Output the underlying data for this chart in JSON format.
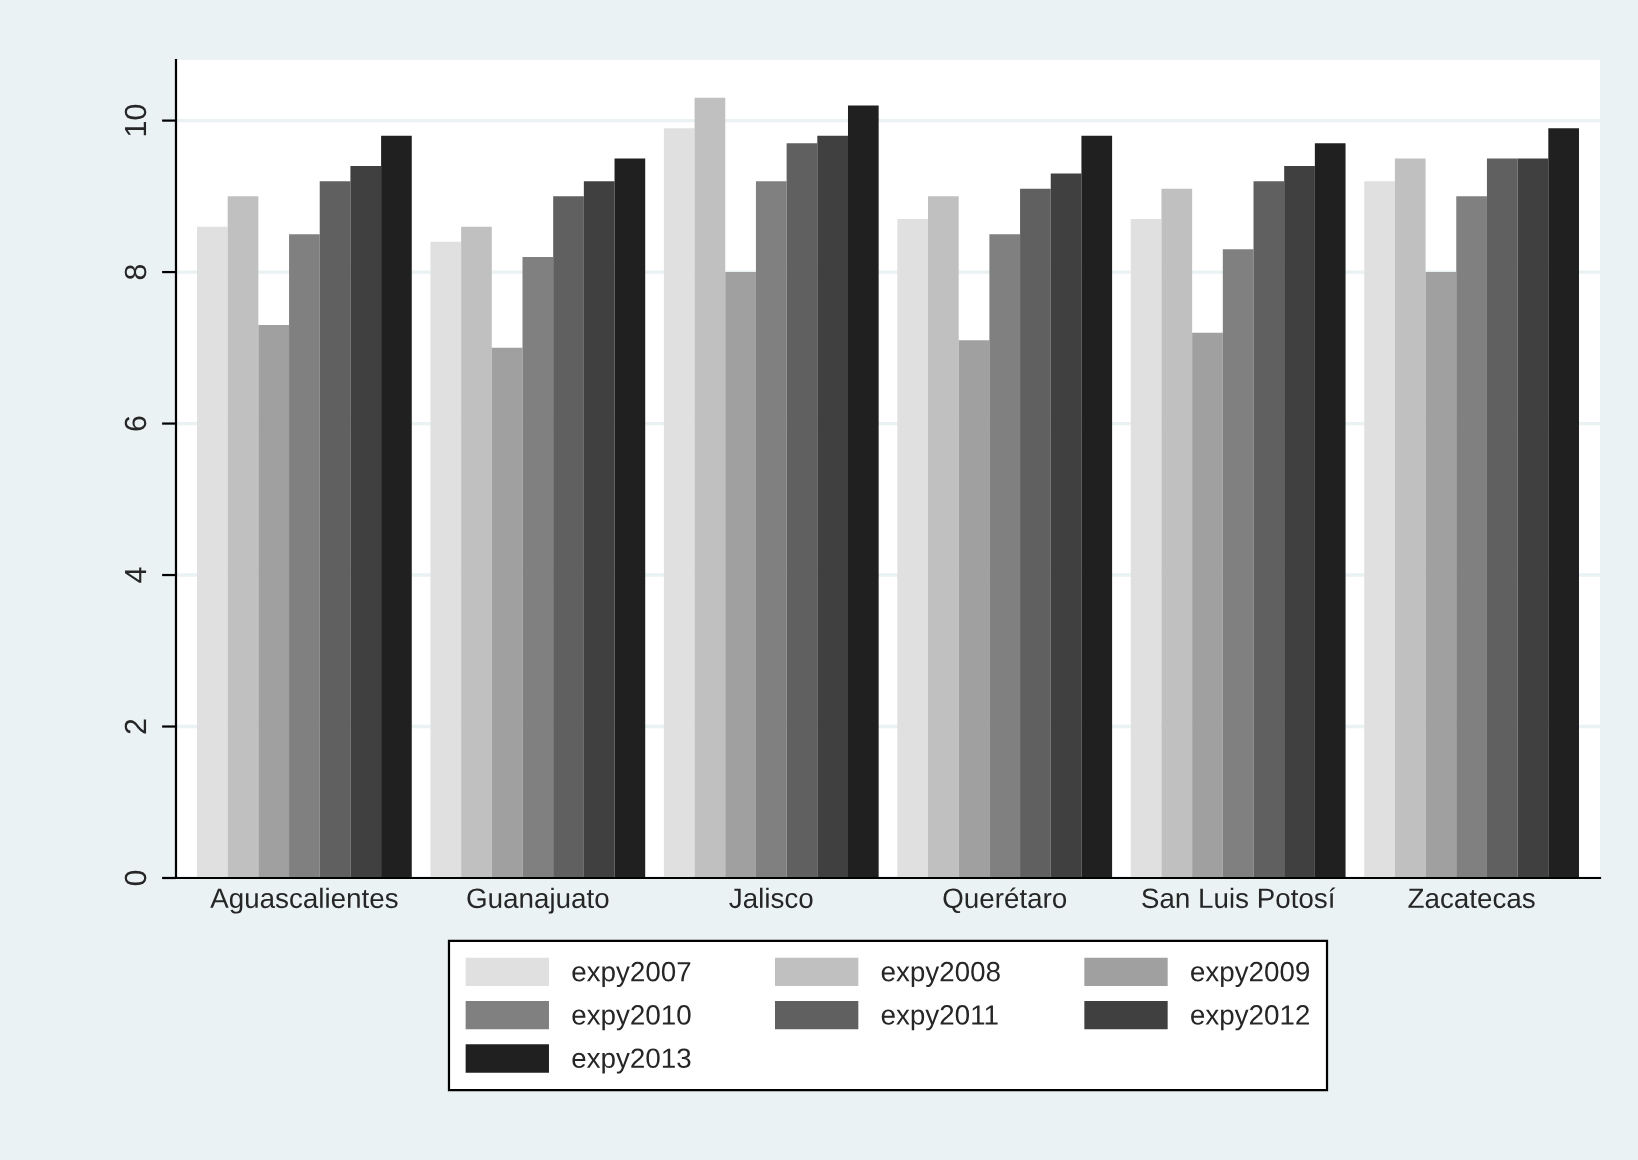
{
  "chart_data": {
    "type": "bar",
    "categories": [
      "Aguascalientes",
      "Guanajuato",
      "Jalisco",
      "Querétaro",
      "San Luis Potosí",
      "Zacatecas"
    ],
    "series": [
      {
        "name": "expy2007",
        "color": "#e0e0e0",
        "values": [
          8.6,
          8.4,
          9.9,
          8.7,
          8.7,
          9.2
        ]
      },
      {
        "name": "expy2008",
        "color": "#c0c0c0",
        "values": [
          9.0,
          8.6,
          10.3,
          9.0,
          9.1,
          9.5
        ]
      },
      {
        "name": "expy2009",
        "color": "#a0a0a0",
        "values": [
          7.3,
          7.0,
          8.0,
          7.1,
          7.2,
          8.0
        ]
      },
      {
        "name": "expy2010",
        "color": "#808080",
        "values": [
          8.5,
          8.2,
          9.2,
          8.5,
          8.3,
          9.0
        ]
      },
      {
        "name": "expy2011",
        "color": "#606060",
        "values": [
          9.2,
          9.0,
          9.7,
          9.1,
          9.2,
          9.5
        ]
      },
      {
        "name": "expy2012",
        "color": "#404040",
        "values": [
          9.4,
          9.2,
          9.8,
          9.3,
          9.4,
          9.5
        ]
      },
      {
        "name": "expy2013",
        "color": "#202020",
        "values": [
          9.8,
          9.5,
          10.2,
          9.8,
          9.7,
          9.9
        ]
      }
    ],
    "ylim": [
      0,
      10.8
    ],
    "yticks": [
      0,
      2,
      4,
      6,
      8,
      10
    ],
    "grid": "y",
    "legend": "bottom"
  }
}
